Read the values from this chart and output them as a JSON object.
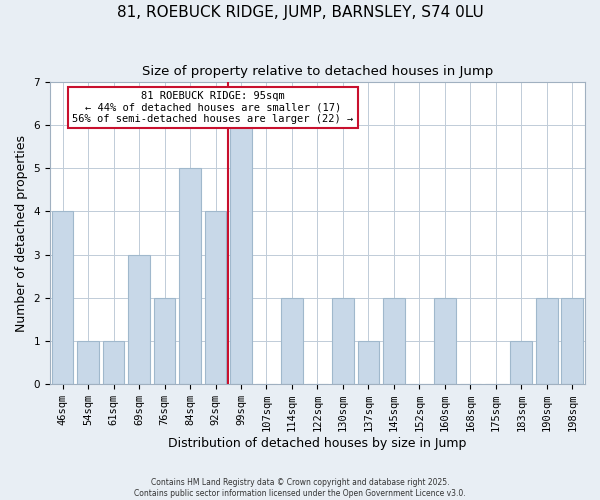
{
  "title": "81, ROEBUCK RIDGE, JUMP, BARNSLEY, S74 0LU",
  "subtitle": "Size of property relative to detached houses in Jump",
  "xlabel": "Distribution of detached houses by size in Jump",
  "ylabel": "Number of detached properties",
  "bar_labels": [
    "46sqm",
    "54sqm",
    "61sqm",
    "69sqm",
    "76sqm",
    "84sqm",
    "92sqm",
    "99sqm",
    "107sqm",
    "114sqm",
    "122sqm",
    "130sqm",
    "137sqm",
    "145sqm",
    "152sqm",
    "160sqm",
    "168sqm",
    "175sqm",
    "183sqm",
    "190sqm",
    "198sqm"
  ],
  "bar_values": [
    4,
    1,
    1,
    3,
    2,
    5,
    4,
    6,
    0,
    2,
    0,
    2,
    1,
    2,
    0,
    2,
    0,
    0,
    1,
    2,
    2
  ],
  "bar_color": "#c8d8e8",
  "bar_edgecolor": "#a0b8cc",
  "highlight_line_index": 7,
  "highlight_color": "#c8102e",
  "ylim": [
    0,
    7
  ],
  "yticks": [
    0,
    1,
    2,
    3,
    4,
    5,
    6,
    7
  ],
  "annotation_title": "81 ROEBUCK RIDGE: 95sqm",
  "annotation_line1": "← 44% of detached houses are smaller (17)",
  "annotation_line2": "56% of semi-detached houses are larger (22) →",
  "annotation_box_color": "#ffffff",
  "annotation_box_edgecolor": "#c8102e",
  "title_fontsize": 11,
  "subtitle_fontsize": 9.5,
  "axis_label_fontsize": 9,
  "tick_fontsize": 7.5,
  "annotation_fontsize": 7.5,
  "background_color": "#e8eef4",
  "plot_background_color": "#ffffff",
  "footer_line1": "Contains HM Land Registry data © Crown copyright and database right 2025.",
  "footer_line2": "Contains public sector information licensed under the Open Government Licence v3.0."
}
